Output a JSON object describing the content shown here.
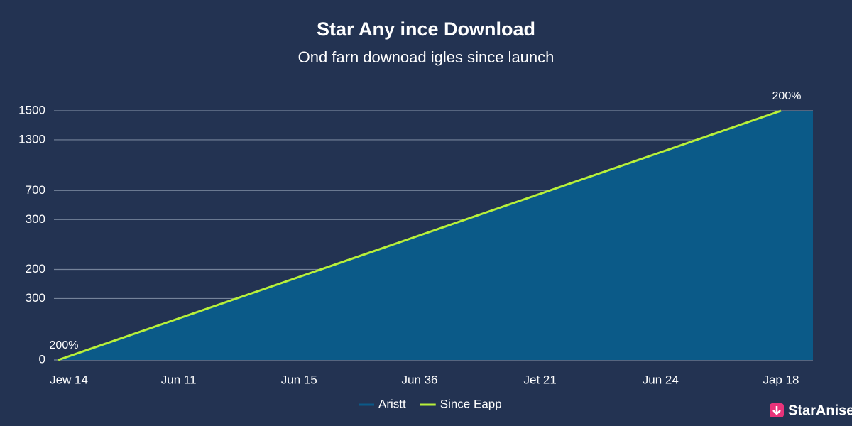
{
  "chart_data": {
    "type": "area",
    "title": "Star Any ince Download",
    "subtitle": "Ond farn downoad igles since launch",
    "categories": [
      "Jew 14",
      "Jun 11",
      "Jun 15",
      "Jun 36",
      "Jet 21",
      "Jun 24",
      "Jap 18"
    ],
    "series": [
      {
        "name": "Aristt",
        "color": "#0b5a88",
        "values": [
          0,
          250,
          500,
          750,
          1000,
          1250,
          1500
        ]
      },
      {
        "name": "Since Eapp",
        "color": "#b8f03a",
        "values": [
          0,
          250,
          500,
          750,
          1000,
          1250,
          1500
        ]
      }
    ],
    "ylim": [
      0,
      1500
    ],
    "yticks": [
      0,
      {
        "value": 370,
        "label": "300"
      },
      {
        "value": 545,
        "label": "200"
      },
      {
        "value": 845,
        "label": "300"
      },
      {
        "value": 1020,
        "label": "700"
      },
      {
        "value": 1325,
        "label": "1300"
      },
      1500
    ],
    "grid": true,
    "annotations": [
      {
        "text": "200%",
        "x": "Jew 14"
      },
      {
        "text": "200%",
        "x": "Jap 18"
      }
    ],
    "watermark": "StarAnise"
  }
}
